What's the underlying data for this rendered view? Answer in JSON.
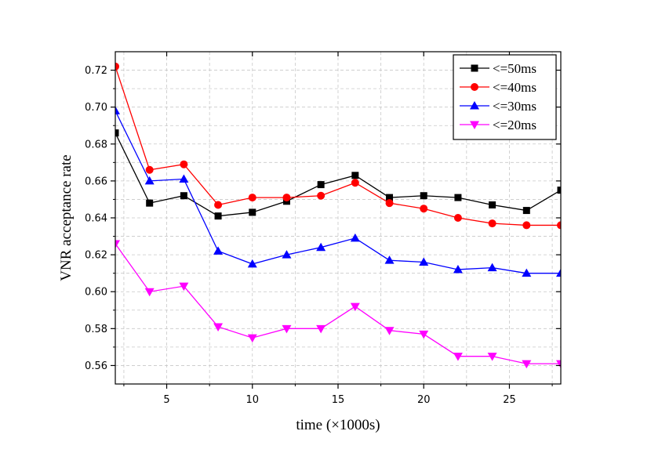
{
  "chart_data": {
    "type": "line",
    "xlabel": "time (×1000s)",
    "ylabel": "VNR acceptance rate",
    "xlim": [
      2,
      28
    ],
    "ylim": [
      0.55,
      0.73
    ],
    "x_ticks": [
      5,
      10,
      15,
      20,
      25
    ],
    "x_tick_labels": [
      "5",
      "10",
      "15",
      "20",
      "25"
    ],
    "y_ticks": [
      0.56,
      0.58,
      0.6,
      0.62,
      0.64,
      0.66,
      0.68,
      0.7,
      0.72
    ],
    "y_tick_labels": [
      "0.56",
      "0.58",
      "0.60",
      "0.62",
      "0.64",
      "0.66",
      "0.68",
      "0.70",
      "0.72"
    ],
    "grid": true,
    "legend_position": "top-right",
    "x": [
      2,
      4,
      6,
      8,
      10,
      12,
      14,
      16,
      18,
      20,
      22,
      24,
      26,
      28
    ],
    "series": [
      {
        "name": "<=50ms",
        "color": "#000000",
        "marker": "square",
        "values": [
          0.686,
          0.648,
          0.652,
          0.641,
          0.643,
          0.649,
          0.658,
          0.663,
          0.651,
          0.652,
          0.651,
          0.647,
          0.644,
          0.655
        ]
      },
      {
        "name": "<=40ms",
        "color": "#ff0000",
        "marker": "circle",
        "values": [
          0.722,
          0.666,
          0.669,
          0.647,
          0.651,
          0.651,
          0.652,
          0.659,
          0.648,
          0.645,
          0.64,
          0.637,
          0.636,
          0.636
        ]
      },
      {
        "name": "<=30ms",
        "color": "#0000ff",
        "marker": "triangle-up",
        "values": [
          0.698,
          0.66,
          0.661,
          0.622,
          0.615,
          0.62,
          0.624,
          0.629,
          0.617,
          0.616,
          0.612,
          0.613,
          0.61,
          0.61
        ]
      },
      {
        "name": "<=20ms",
        "color": "#ff00ff",
        "marker": "triangle-down",
        "values": [
          0.626,
          0.6,
          0.603,
          0.581,
          0.575,
          0.58,
          0.58,
          0.592,
          0.579,
          0.577,
          0.565,
          0.565,
          0.561,
          0.561
        ]
      }
    ]
  }
}
